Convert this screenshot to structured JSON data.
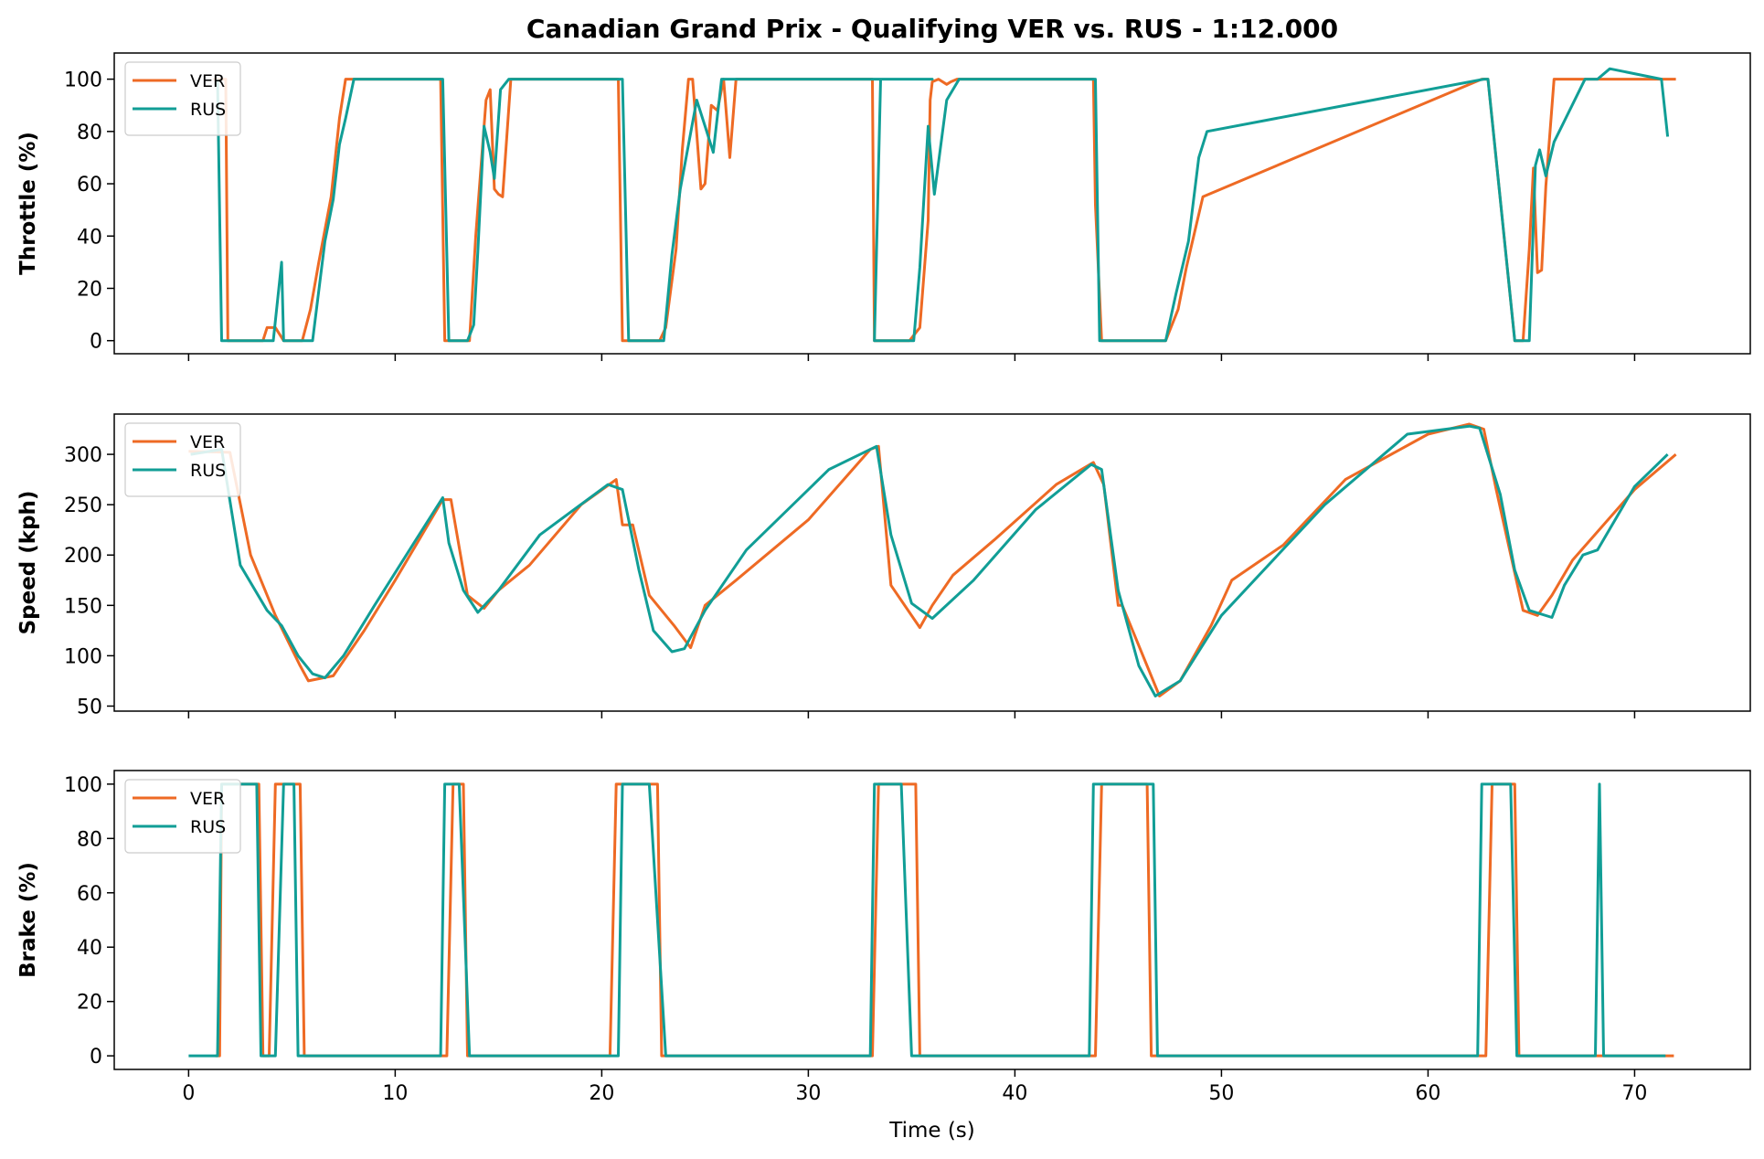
{
  "chart_data": {
    "type": "line",
    "title": "Canadian Grand Prix - Qualifying VER vs. RUS - 1:12.000",
    "xlabel": "Time (s)",
    "xlim": [
      -3.6,
      75.6
    ],
    "xticks": [
      0,
      10,
      20,
      30,
      40,
      50,
      60,
      70
    ],
    "colors": {
      "VER": "#ee6a24",
      "RUS": "#119e96"
    },
    "legend_position": "upper-left",
    "panels": [
      {
        "ylabel": "Throttle (%)",
        "ylim": [
          -5,
          110
        ],
        "yticks": [
          0,
          20,
          40,
          60,
          80,
          100
        ],
        "series": [
          {
            "name": "VER",
            "x": [
              1.2,
              1.8,
              1.9,
              3.6,
              3.8,
              4.2,
              4.6,
              5.5,
              5.9,
              6.3,
              6.9,
              7.3,
              7.6,
              8.1,
              12.2,
              12.4,
              12.8,
              13.6,
              13.9,
              14.4,
              14.6,
              14.8,
              15.0,
              15.2,
              15.6,
              15.9,
              20.8,
              21.0,
              22.8,
              23.1,
              23.6,
              23.9,
              24.2,
              24.4,
              24.8,
              25.0,
              25.3,
              25.6,
              25.9,
              26.2,
              26.5,
              33.1,
              33.2,
              34.9,
              35.4,
              35.8,
              35.9,
              36.0,
              36.3,
              36.7,
              36.9,
              37.2,
              43.8,
              43.9,
              44.2,
              46.8,
              47.3,
              47.9,
              48.3,
              49.1,
              62.6,
              62.9,
              64.2,
              64.6,
              64.9,
              65.1,
              65.3,
              65.5,
              65.7,
              66.1,
              72.0
            ],
            "y": [
              100,
              100,
              0,
              0,
              5,
              5,
              0,
              0,
              12,
              30,
              55,
              85,
              100,
              100,
              100,
              0,
              0,
              0,
              40,
              92,
              96,
              58,
              56,
              55,
              100,
              100,
              100,
              0,
              0,
              5,
              35,
              73,
              100,
              100,
              58,
              60,
              90,
              88,
              100,
              70,
              100,
              100,
              0,
              0,
              5,
              46,
              92,
              99,
              100,
              98,
              99,
              100,
              100,
              52,
              0,
              0,
              0,
              12,
              28,
              55,
              100,
              100,
              0,
              0,
              35,
              66,
              26,
              27,
              59,
              100,
              100
            ]
          },
          {
            "name": "RUS",
            "x": [
              1.4,
              1.6,
              3.6,
              4.1,
              4.5,
              4.6,
              6.0,
              6.6,
              7.0,
              7.3,
              7.6,
              8.0,
              8.4,
              12.3,
              12.6,
              13.5,
              13.8,
              14.0,
              14.3,
              14.6,
              14.8,
              15.1,
              15.5,
              21.0,
              21.3,
              23.0,
              23.4,
              23.8,
              24.2,
              24.6,
              25.0,
              25.4,
              25.8,
              36.0,
              33.5,
              33.2,
              35.1,
              35.4,
              35.8,
              36.1,
              36.7,
              37.3,
              43.9,
              44.1,
              46.9,
              47.3,
              47.8,
              48.4,
              48.9,
              49.3,
              62.7,
              62.9,
              64.2,
              64.5,
              64.9,
              65.2,
              65.4,
              65.7,
              66.1,
              67.6,
              68.2,
              68.8,
              71.3,
              71.6
            ],
            "y": [
              100,
              0,
              0,
              0,
              30,
              0,
              0,
              38,
              54,
              75,
              85,
              100,
              100,
              100,
              0,
              0,
              6,
              34,
              82,
              72,
              62,
              96,
              100,
              100,
              0,
              0,
              33,
              58,
              75,
              92,
              82,
              72,
              100,
              100,
              100,
              0,
              0,
              28,
              82,
              56,
              92,
              100,
              100,
              0,
              0,
              0,
              18,
              38,
              70,
              80,
              100,
              100,
              0,
              0,
              0,
              67,
              73,
              63,
              76,
              100,
              100,
              104,
              100,
              78
            ]
          }
        ]
      },
      {
        "ylabel": "Speed (kph)",
        "ylim": [
          45,
          340
        ],
        "yticks": [
          50,
          100,
          150,
          200,
          250,
          300
        ],
        "series": [
          {
            "name": "VER",
            "x": [
              0,
              2.0,
              3.0,
              4.2,
              4.8,
              5.4,
              5.8,
              7.0,
              8.5,
              10.0,
              12.3,
              12.7,
              13.5,
              14.3,
              15.0,
              16.5,
              19.0,
              20.7,
              21.0,
              21.5,
              22.3,
              23.5,
              24.3,
              25.0,
              26.5,
              30.0,
              33.0,
              33.4,
              34.0,
              35.4,
              36.0,
              37.0,
              39.0,
              42.0,
              43.8,
              44.3,
              45.0,
              45.2,
              45.6,
              47.0,
              48.0,
              49.5,
              50.5,
              53.0,
              56.0,
              60.0,
              62.0,
              62.7,
              63.3,
              64.6,
              65.3,
              66.0,
              67.0,
              70.0,
              72.0
            ],
            "y": [
              303,
              302,
              200,
              140,
              115,
              90,
              75,
              80,
              125,
              175,
              255,
              255,
              160,
              147,
              165,
              190,
              250,
              275,
              230,
              230,
              160,
              130,
              108,
              150,
              175,
              235,
              305,
              308,
              170,
              128,
              150,
              180,
              215,
              270,
              292,
              270,
              150,
              150,
              130,
              60,
              75,
              130,
              175,
              210,
              275,
              320,
              330,
              325,
              265,
              145,
              140,
              160,
              195,
              265,
              300
            ]
          },
          {
            "name": "RUS",
            "x": [
              0.1,
              1.6,
              2.5,
              3.8,
              4.5,
              5.3,
              6.0,
              6.6,
              7.5,
              9.0,
              11.0,
              12.3,
              12.6,
              13.3,
              14.0,
              15.0,
              17.0,
              20.3,
              21.0,
              21.8,
              22.5,
              23.4,
              24.0,
              25.0,
              27.0,
              31.0,
              33.3,
              34.0,
              35.0,
              36.0,
              38.0,
              41.0,
              43.7,
              44.2,
              45.0,
              46.0,
              46.8,
              48.0,
              50.0,
              55.0,
              59.0,
              62.0,
              62.5,
              63.5,
              64.2,
              64.9,
              66.0,
              66.6,
              67.5,
              68.2,
              70.0,
              71.6
            ],
            "y": [
              300,
              305,
              190,
              145,
              130,
              100,
              82,
              78,
              100,
              150,
              215,
              257,
              212,
              165,
              143,
              165,
              220,
              270,
              265,
              185,
              125,
              104,
              107,
              145,
              205,
              285,
              308,
              220,
              152,
              137,
              175,
              245,
              290,
              285,
              165,
              90,
              60,
              75,
              140,
              250,
              320,
              328,
              326,
              260,
              185,
              145,
              138,
              170,
              200,
              205,
              268,
              300
            ]
          }
        ]
      },
      {
        "ylabel": "Brake (%)",
        "ylim": [
          -5,
          105
        ],
        "yticks": [
          0,
          20,
          40,
          60,
          80,
          100
        ],
        "series": [
          {
            "name": "VER",
            "x": [
              1.3,
              1.5,
              1.6,
              3.4,
              3.6,
              3.9,
              4.2,
              4.7,
              5.4,
              5.6,
              12.5,
              12.8,
              13.3,
              13.5,
              20.4,
              20.7,
              22.7,
              22.9,
              33.1,
              33.4,
              35.2,
              35.4,
              43.9,
              44.2,
              46.4,
              46.6,
              62.8,
              63.1,
              64.2,
              64.4,
              71.9
            ],
            "y": [
              0,
              0,
              100,
              100,
              0,
              0,
              100,
              100,
              100,
              0,
              0,
              100,
              100,
              0,
              0,
              100,
              100,
              0,
              0,
              100,
              100,
              0,
              0,
              100,
              100,
              0,
              0,
              100,
              100,
              0,
              0
            ]
          },
          {
            "name": "RUS",
            "x": [
              0,
              1.4,
              1.6,
              3.3,
              3.5,
              4.2,
              4.6,
              5.1,
              5.3,
              12.2,
              12.4,
              13.1,
              13.6,
              20.8,
              21.0,
              22.3,
              23.1,
              33.0,
              33.2,
              34.5,
              35.0,
              43.6,
              43.8,
              46.7,
              46.9,
              62.4,
              62.6,
              64.0,
              64.3,
              68.1,
              68.3,
              68.5,
              71.5
            ],
            "y": [
              0,
              0,
              100,
              100,
              0,
              0,
              100,
              100,
              0,
              0,
              100,
              100,
              0,
              0,
              100,
              100,
              0,
              0,
              100,
              100,
              0,
              0,
              100,
              100,
              0,
              0,
              100,
              100,
              0,
              0,
              100,
              0,
              0
            ]
          }
        ]
      }
    ]
  }
}
